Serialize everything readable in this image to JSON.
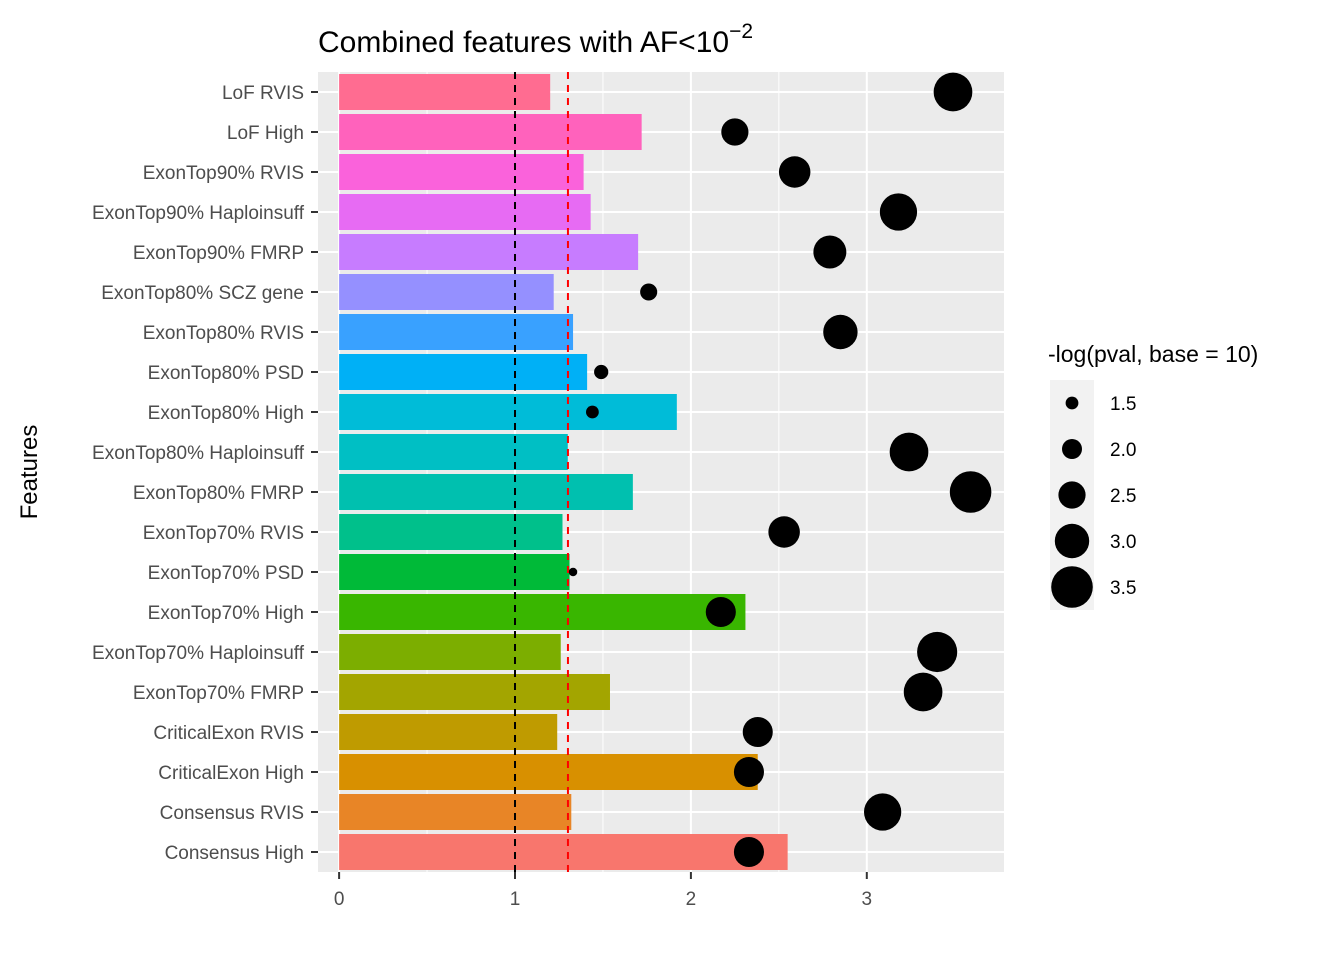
{
  "chart_data": {
    "type": "bar",
    "title": "Combined features with AF<10",
    "title_superscript": "−2",
    "xlabel": "",
    "ylabel": "Features",
    "xlim": [
      -0.12,
      3.78
    ],
    "x_ticks": [
      "0",
      "1",
      "2",
      "3"
    ],
    "x_tick_values": [
      0,
      1,
      2,
      3
    ],
    "grid": true,
    "reference_lines": [
      {
        "value": 1.0,
        "color": "#000000",
        "style": "dashed"
      },
      {
        "value": 1.301,
        "color": "#ff0000",
        "style": "dashed"
      }
    ],
    "categories": [
      "LoF RVIS",
      "LoF High",
      "ExonTop90% RVIS",
      "ExonTop90% Haploinsuff",
      "ExonTop90% FMRP",
      "ExonTop80% SCZ gene",
      "ExonTop80% RVIS",
      "ExonTop80% PSD",
      "ExonTop80% High",
      "ExonTop80% Haploinsuff",
      "ExonTop80% FMRP",
      "ExonTop70% RVIS",
      "ExonTop70% PSD",
      "ExonTop70% High",
      "ExonTop70% Haploinsuff",
      "ExonTop70% FMRP",
      "CriticalExon RVIS",
      "CriticalExon High",
      "Consensus RVIS",
      "Consensus High"
    ],
    "bar_values": [
      1.2,
      1.72,
      1.39,
      1.43,
      1.7,
      1.22,
      1.33,
      1.41,
      1.92,
      1.3,
      1.67,
      1.27,
      1.31,
      2.31,
      1.26,
      1.54,
      1.24,
      2.38,
      1.32,
      2.55
    ],
    "bar_colors": [
      "#FF6C91",
      "#FF62BC",
      "#FA62DB",
      "#E76BF3",
      "#C77CFF",
      "#9590FF",
      "#39A1FF",
      "#00B0F6",
      "#00BCD8",
      "#00BFC4",
      "#00C0AF",
      "#00C08B",
      "#00BA38",
      "#39B600",
      "#7CAE00",
      "#A3A500",
      "#BF9B00",
      "#D89000",
      "#E88526",
      "#F8766D"
    ],
    "point_x": [
      3.49,
      2.25,
      2.59,
      3.18,
      2.79,
      1.76,
      2.85,
      1.49,
      1.44,
      3.24,
      3.59,
      2.53,
      1.33,
      2.17,
      3.4,
      3.32,
      2.38,
      2.33,
      3.09,
      2.33
    ],
    "point_size": [
      3.3,
      2.5,
      2.8,
      3.2,
      2.9,
      1.8,
      3.0,
      1.6,
      1.5,
      3.3,
      3.5,
      2.8,
      1.2,
      2.7,
      3.4,
      3.3,
      2.7,
      2.7,
      3.2,
      2.7
    ],
    "point_color": "#000000",
    "legend": {
      "title": "-log(pval, base = 10)",
      "placement": "right",
      "entries": [
        "1.5",
        "2.0",
        "2.5",
        "3.0",
        "3.5"
      ],
      "entry_values": [
        1.5,
        2.0,
        2.5,
        3.0,
        3.5
      ]
    },
    "panel_background": "#EBEBEB",
    "grid_color": "#FFFFFF"
  }
}
